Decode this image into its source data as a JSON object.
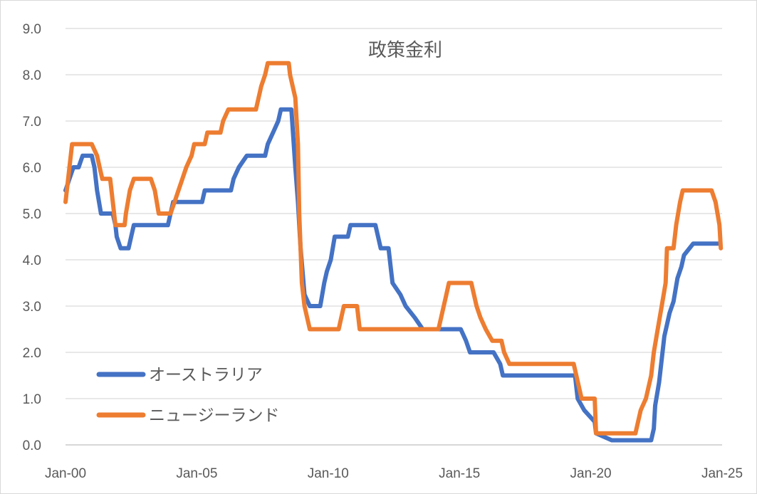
{
  "chart_data": {
    "type": "line",
    "title": "政策金利",
    "xlabel": "",
    "ylabel": "",
    "ylim": [
      0,
      9
    ],
    "yticks": [
      "0.0",
      "1.0",
      "2.0",
      "3.0",
      "4.0",
      "5.0",
      "6.0",
      "7.0",
      "8.0",
      "9.0"
    ],
    "xticks": [
      {
        "label": "Jan-00",
        "x": 2000
      },
      {
        "label": "Jan-05",
        "x": 2005
      },
      {
        "label": "Jan-10",
        "x": 2010
      },
      {
        "label": "Jan-15",
        "x": 2015
      },
      {
        "label": "Jan-20",
        "x": 2020
      },
      {
        "label": "Jan-25",
        "x": 2025
      }
    ],
    "xlim": [
      2000,
      2025
    ],
    "grid": true,
    "legend_position": "bottom-left",
    "series": [
      {
        "name": "オーストラリア",
        "color": "#4472C4",
        "points": [
          [
            2000.0,
            5.5
          ],
          [
            2000.15,
            5.75
          ],
          [
            2000.3,
            6.0
          ],
          [
            2000.5,
            6.0
          ],
          [
            2000.65,
            6.25
          ],
          [
            2001.0,
            6.25
          ],
          [
            2001.1,
            6.0
          ],
          [
            2001.2,
            5.5
          ],
          [
            2001.35,
            5.0
          ],
          [
            2001.8,
            5.0
          ],
          [
            2001.9,
            4.75
          ],
          [
            2001.95,
            4.5
          ],
          [
            2002.1,
            4.25
          ],
          [
            2002.4,
            4.25
          ],
          [
            2002.5,
            4.5
          ],
          [
            2002.6,
            4.75
          ],
          [
            2003.9,
            4.75
          ],
          [
            2004.0,
            5.0
          ],
          [
            2004.1,
            5.25
          ],
          [
            2005.2,
            5.25
          ],
          [
            2005.3,
            5.5
          ],
          [
            2006.3,
            5.5
          ],
          [
            2006.4,
            5.75
          ],
          [
            2006.6,
            6.0
          ],
          [
            2006.9,
            6.25
          ],
          [
            2007.6,
            6.25
          ],
          [
            2007.7,
            6.5
          ],
          [
            2007.9,
            6.75
          ],
          [
            2008.1,
            7.0
          ],
          [
            2008.2,
            7.25
          ],
          [
            2008.6,
            7.25
          ],
          [
            2008.75,
            6.0
          ],
          [
            2008.85,
            5.25
          ],
          [
            2008.95,
            4.25
          ],
          [
            2009.1,
            3.25
          ],
          [
            2009.3,
            3.0
          ],
          [
            2009.7,
            3.0
          ],
          [
            2009.85,
            3.5
          ],
          [
            2009.95,
            3.75
          ],
          [
            2010.1,
            4.0
          ],
          [
            2010.25,
            4.5
          ],
          [
            2010.75,
            4.5
          ],
          [
            2010.85,
            4.75
          ],
          [
            2011.8,
            4.75
          ],
          [
            2011.9,
            4.5
          ],
          [
            2012.0,
            4.25
          ],
          [
            2012.3,
            4.25
          ],
          [
            2012.4,
            3.75
          ],
          [
            2012.45,
            3.5
          ],
          [
            2012.75,
            3.25
          ],
          [
            2012.95,
            3.0
          ],
          [
            2013.3,
            2.75
          ],
          [
            2013.6,
            2.5
          ],
          [
            2015.05,
            2.5
          ],
          [
            2015.25,
            2.25
          ],
          [
            2015.4,
            2.0
          ],
          [
            2016.3,
            2.0
          ],
          [
            2016.55,
            1.75
          ],
          [
            2016.65,
            1.5
          ],
          [
            2019.4,
            1.5
          ],
          [
            2019.45,
            1.25
          ],
          [
            2019.5,
            1.0
          ],
          [
            2019.75,
            0.75
          ],
          [
            2020.15,
            0.5
          ],
          [
            2020.2,
            0.25
          ],
          [
            2020.8,
            0.1
          ],
          [
            2022.3,
            0.1
          ],
          [
            2022.4,
            0.35
          ],
          [
            2022.45,
            0.85
          ],
          [
            2022.6,
            1.35
          ],
          [
            2022.7,
            1.85
          ],
          [
            2022.8,
            2.35
          ],
          [
            2022.9,
            2.6
          ],
          [
            2023.0,
            2.85
          ],
          [
            2023.15,
            3.1
          ],
          [
            2023.3,
            3.6
          ],
          [
            2023.45,
            3.85
          ],
          [
            2023.55,
            4.1
          ],
          [
            2023.9,
            4.35
          ],
          [
            2024.9,
            4.35
          ]
        ]
      },
      {
        "name": "ニュージーランド",
        "color": "#ED7D31",
        "points": [
          [
            2000.0,
            5.25
          ],
          [
            2000.1,
            5.75
          ],
          [
            2000.25,
            6.5
          ],
          [
            2001.0,
            6.5
          ],
          [
            2001.2,
            6.25
          ],
          [
            2001.3,
            6.0
          ],
          [
            2001.4,
            5.75
          ],
          [
            2001.7,
            5.75
          ],
          [
            2001.8,
            5.25
          ],
          [
            2001.9,
            4.75
          ],
          [
            2002.25,
            4.75
          ],
          [
            2002.3,
            5.0
          ],
          [
            2002.45,
            5.5
          ],
          [
            2002.6,
            5.75
          ],
          [
            2003.25,
            5.75
          ],
          [
            2003.4,
            5.5
          ],
          [
            2003.55,
            5.0
          ],
          [
            2004.0,
            5.0
          ],
          [
            2004.15,
            5.25
          ],
          [
            2004.3,
            5.5
          ],
          [
            2004.45,
            5.75
          ],
          [
            2004.6,
            6.0
          ],
          [
            2004.8,
            6.25
          ],
          [
            2004.9,
            6.5
          ],
          [
            2005.3,
            6.5
          ],
          [
            2005.4,
            6.75
          ],
          [
            2005.9,
            6.75
          ],
          [
            2006.0,
            7.0
          ],
          [
            2006.2,
            7.25
          ],
          [
            2007.25,
            7.25
          ],
          [
            2007.35,
            7.5
          ],
          [
            2007.45,
            7.75
          ],
          [
            2007.6,
            8.0
          ],
          [
            2007.7,
            8.25
          ],
          [
            2008.5,
            8.25
          ],
          [
            2008.55,
            8.0
          ],
          [
            2008.75,
            7.5
          ],
          [
            2008.85,
            6.5
          ],
          [
            2008.9,
            5.0
          ],
          [
            2009.0,
            3.5
          ],
          [
            2009.1,
            3.0
          ],
          [
            2009.3,
            2.5
          ],
          [
            2010.4,
            2.5
          ],
          [
            2010.5,
            2.75
          ],
          [
            2010.6,
            3.0
          ],
          [
            2011.1,
            3.0
          ],
          [
            2011.2,
            2.5
          ],
          [
            2014.2,
            2.5
          ],
          [
            2014.3,
            2.75
          ],
          [
            2014.4,
            3.0
          ],
          [
            2014.5,
            3.25
          ],
          [
            2014.6,
            3.5
          ],
          [
            2015.45,
            3.5
          ],
          [
            2015.55,
            3.25
          ],
          [
            2015.65,
            3.0
          ],
          [
            2015.8,
            2.75
          ],
          [
            2016.0,
            2.5
          ],
          [
            2016.25,
            2.25
          ],
          [
            2016.6,
            2.25
          ],
          [
            2016.7,
            2.0
          ],
          [
            2016.9,
            1.75
          ],
          [
            2019.35,
            1.75
          ],
          [
            2019.45,
            1.5
          ],
          [
            2019.65,
            1.0
          ],
          [
            2020.15,
            1.0
          ],
          [
            2020.2,
            0.25
          ],
          [
            2021.7,
            0.25
          ],
          [
            2021.8,
            0.5
          ],
          [
            2021.9,
            0.75
          ],
          [
            2022.1,
            1.0
          ],
          [
            2022.3,
            1.5
          ],
          [
            2022.4,
            2.0
          ],
          [
            2022.55,
            2.5
          ],
          [
            2022.7,
            3.0
          ],
          [
            2022.85,
            3.5
          ],
          [
            2022.9,
            4.25
          ],
          [
            2023.15,
            4.25
          ],
          [
            2023.25,
            4.75
          ],
          [
            2023.4,
            5.25
          ],
          [
            2023.5,
            5.5
          ],
          [
            2024.6,
            5.5
          ],
          [
            2024.75,
            5.25
          ],
          [
            2024.9,
            4.75
          ],
          [
            2024.95,
            4.25
          ]
        ]
      }
    ]
  }
}
